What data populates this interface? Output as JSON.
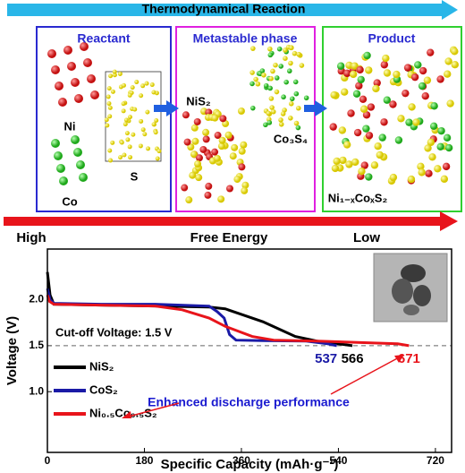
{
  "schematic": {
    "top_arrow": "Thermodynamical Reaction",
    "boxes": [
      {
        "title": "Reactant",
        "labels": [
          "Ni",
          "Co",
          "S"
        ]
      },
      {
        "title": "Metastable phase",
        "labels": [
          "NiS₂",
          "Co₃S₄"
        ]
      },
      {
        "title": "Product",
        "labels": [
          "Ni₁₋ₓCoₓS₂"
        ]
      }
    ],
    "energy_labels": [
      "High",
      "Free Energy",
      "Low"
    ]
  },
  "chart_data": {
    "type": "line",
    "xlabel": "Specific Capacity (mAh·g⁻¹)",
    "ylabel": "Voltage (V)",
    "xlim": [
      0,
      750
    ],
    "ylim": [
      0.34,
      2.55
    ],
    "xticks": [
      0,
      180,
      360,
      540,
      720
    ],
    "yticks": [
      {
        "value": 1,
        "label": "1.0"
      },
      {
        "value": 1.5,
        "label": "1.5"
      },
      {
        "value": 2,
        "label": "2.0"
      }
    ],
    "cutoff": 1.5,
    "cutoff_label": "Cut-off Voltage: 1.5 V",
    "annotation": "Enhanced discharge performance",
    "series": [
      {
        "name": "NiS₂",
        "color": "#000000",
        "capacity": 566,
        "x": [
          0,
          5,
          12,
          100,
          200,
          300,
          330,
          360,
          400,
          430,
          460,
          500,
          540,
          566
        ],
        "values": [
          2.3,
          2.05,
          1.95,
          1.94,
          1.93,
          1.92,
          1.9,
          1.84,
          1.76,
          1.68,
          1.6,
          1.55,
          1.52,
          1.5
        ]
      },
      {
        "name": "CoS₂",
        "color": "#1a1aa6",
        "capacity": 537,
        "x": [
          0,
          5,
          12,
          100,
          200,
          300,
          315,
          328,
          338,
          350,
          400,
          480,
          520,
          537
        ],
        "values": [
          2.12,
          2.0,
          1.96,
          1.95,
          1.95,
          1.93,
          1.87,
          1.8,
          1.62,
          1.56,
          1.555,
          1.55,
          1.52,
          1.5
        ]
      },
      {
        "name": "Ni₀.₅Co₀.₅S₂",
        "color": "#e8141b",
        "capacity": 671,
        "x": [
          0,
          4,
          12,
          100,
          200,
          250,
          300,
          330,
          380,
          420,
          500,
          600,
          650,
          671
        ],
        "values": [
          2.05,
          1.98,
          1.95,
          1.94,
          1.93,
          1.89,
          1.8,
          1.71,
          1.6,
          1.56,
          1.55,
          1.53,
          1.52,
          1.5
        ]
      }
    ]
  }
}
